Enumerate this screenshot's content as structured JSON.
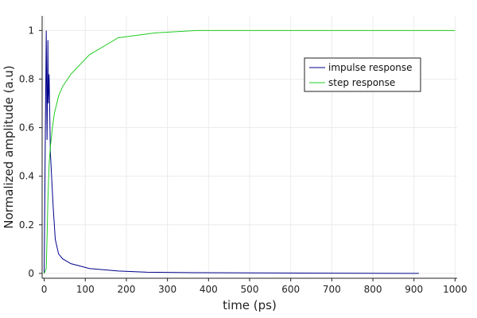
{
  "chart_data": {
    "type": "line",
    "title": "",
    "xlabel": "time (ps)",
    "ylabel": "Normalized amplitude (a.u)",
    "xlim": [
      -5,
      1005
    ],
    "ylim": [
      -0.02,
      1.06
    ],
    "xticks": [
      "0",
      "100",
      "200",
      "300",
      "400",
      "500",
      "600",
      "700",
      "800",
      "900",
      "1000"
    ],
    "yticks": [
      "0",
      "0.2",
      "0.4",
      "0.6",
      "0.8",
      "1"
    ],
    "grid": true,
    "legend_position": "top-right",
    "series": [
      {
        "name": "impulse response",
        "color": "#00008b",
        "x": [
          0,
          5,
          7,
          9,
          10,
          12,
          15,
          18,
          22,
          27,
          35,
          45,
          65,
          110,
          180,
          250,
          370,
          500,
          700,
          912
        ],
        "y": [
          0.0,
          1.0,
          0.55,
          0.96,
          0.7,
          0.82,
          0.5,
          0.4,
          0.27,
          0.14,
          0.08,
          0.06,
          0.04,
          0.02,
          0.01,
          0.005,
          0.003,
          0.002,
          0.001,
          0.0
        ]
      },
      {
        "name": "step response",
        "color": "#22cc22",
        "x": [
          0,
          5,
          7,
          9,
          12,
          15,
          20,
          25,
          35,
          45,
          65,
          110,
          180,
          270,
          370,
          500,
          700,
          1000
        ],
        "y": [
          0.0,
          0.02,
          0.15,
          0.3,
          0.45,
          0.52,
          0.6,
          0.66,
          0.73,
          0.77,
          0.82,
          0.9,
          0.97,
          0.99,
          1.0,
          1.0,
          1.0,
          1.0
        ]
      }
    ]
  }
}
